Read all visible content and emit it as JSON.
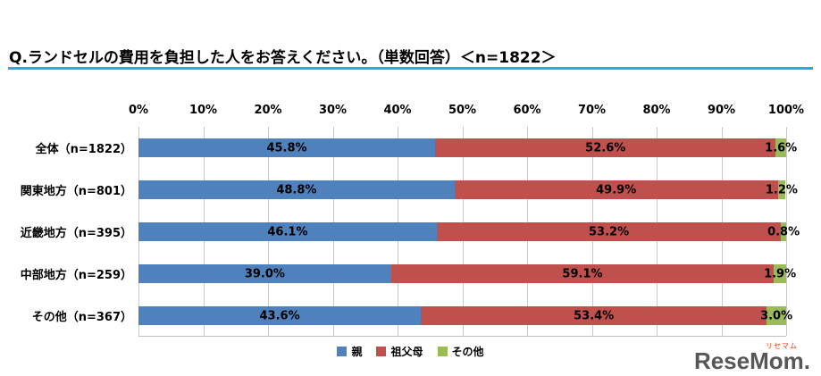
{
  "title": "Q.ランドセルの費用を負担した人をお答えください。（単数回答）＜n=1822＞",
  "colors": {
    "title_underline": "#29abe2",
    "series_parent": "#4f81bd",
    "series_grandparents": "#c0504d",
    "series_other": "#9bbb59",
    "gridline": "#c9c9c9"
  },
  "chart_data": {
    "type": "bar",
    "stacked": true,
    "orientation": "horizontal",
    "title": "Q.ランドセルの費用を負担した人をお答えください。（単数回答）＜n=1822＞",
    "categories": [
      "全体（n=1822）",
      "関東地方（n=801）",
      "近畿地方（n=395）",
      "中部地方（n=259）",
      "その他（n=367）"
    ],
    "series": [
      {
        "key": "parent",
        "name": "親",
        "color": "#4f81bd",
        "values": [
          45.8,
          48.8,
          46.1,
          39.0,
          43.6
        ]
      },
      {
        "key": "grandparents",
        "name": "祖父母",
        "color": "#c0504d",
        "values": [
          52.6,
          49.9,
          53.2,
          59.1,
          53.4
        ]
      },
      {
        "key": "other",
        "name": "その他",
        "color": "#9bbb59",
        "values": [
          1.6,
          1.2,
          0.8,
          1.9,
          3.0
        ]
      }
    ],
    "x_ticks": [
      "0%",
      "10%",
      "20%",
      "30%",
      "40%",
      "50%",
      "60%",
      "70%",
      "80%",
      "90%",
      "100%"
    ],
    "xlim": [
      0,
      100
    ],
    "value_suffix": "%",
    "grid": true,
    "legend_position": "bottom"
  },
  "logo": {
    "text": "ReseMom",
    "dot": ".",
    "kana": "リセマム"
  }
}
